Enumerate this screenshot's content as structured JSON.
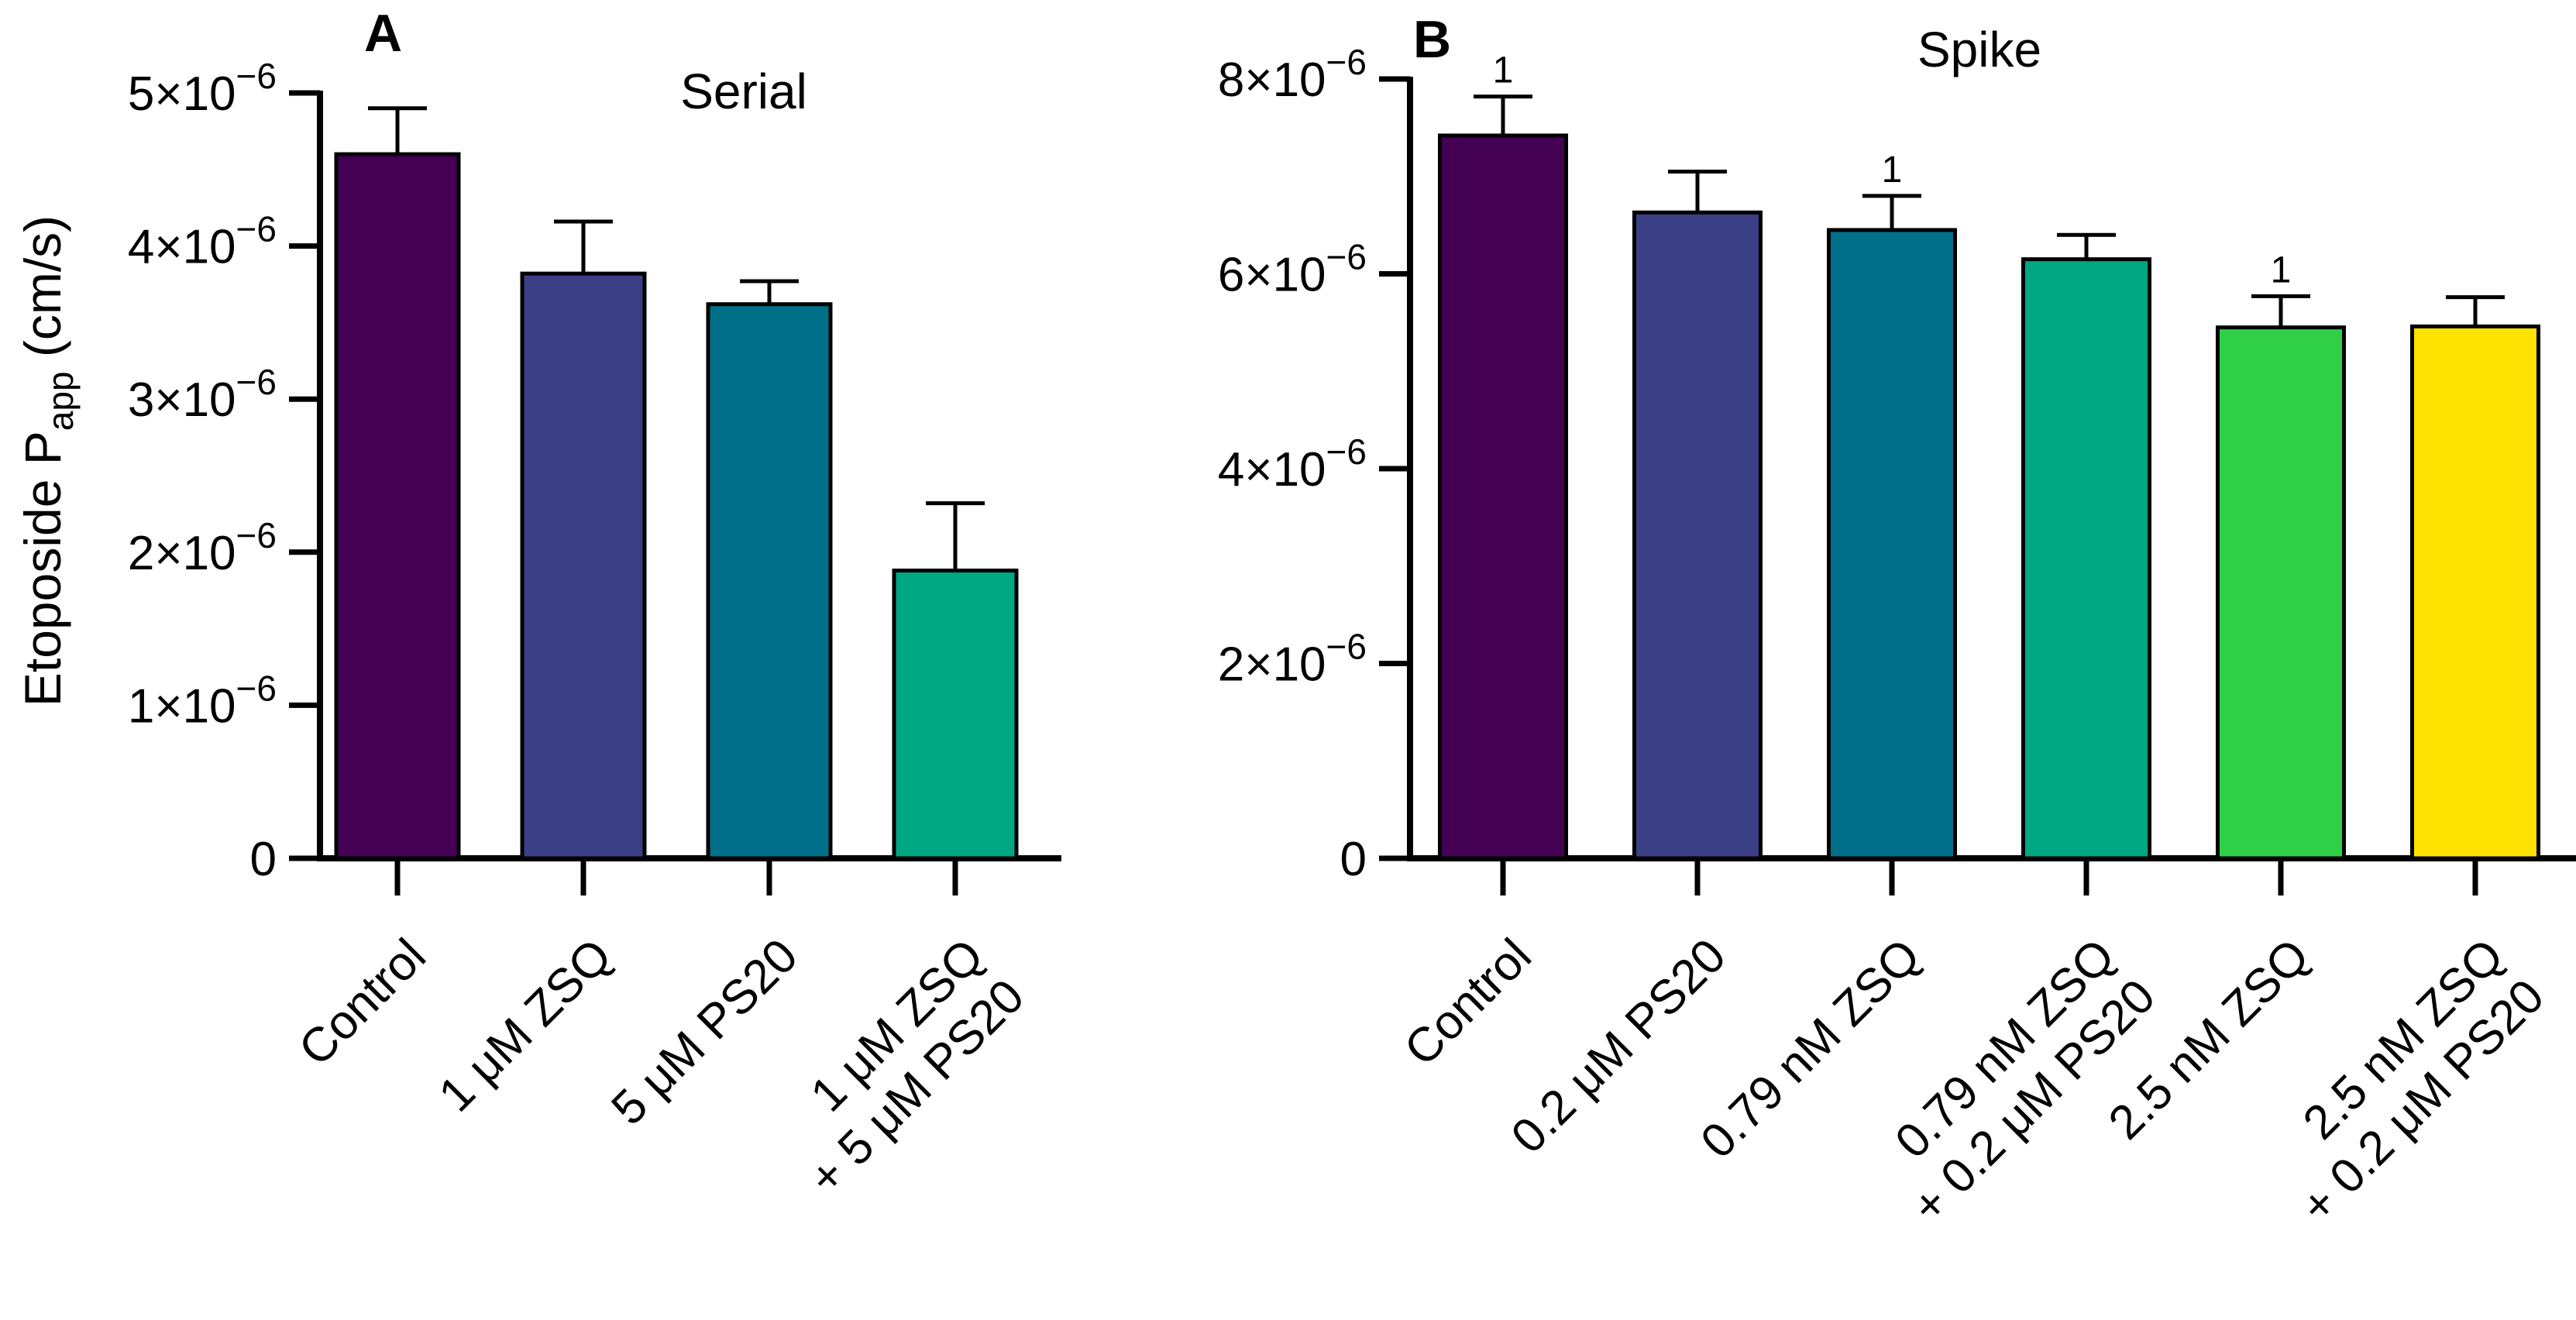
{
  "figure": {
    "ylabel_main": "Etoposide P",
    "ylabel_sub": "app",
    "ylabel_unit": " (cm/s)"
  },
  "chart_data": [
    {
      "panel": "A",
      "type": "bar",
      "title": "Serial",
      "xlabel": "",
      "ylabel": "Etoposide Papp (cm/s)",
      "ylim": [
        0,
        5e-06
      ],
      "yticks": [
        0,
        1e-06,
        2e-06,
        3e-06,
        4e-06,
        5e-06
      ],
      "ytick_labels": [
        {
          "base": "0",
          "exp": ""
        },
        {
          "base": "1×10",
          "exp": "−6"
        },
        {
          "base": "2×10",
          "exp": "−6"
        },
        {
          "base": "3×10",
          "exp": "−6"
        },
        {
          "base": "4×10",
          "exp": "−6"
        },
        {
          "base": "5×10",
          "exp": "−6"
        }
      ],
      "categories": [
        [
          "Control"
        ],
        [
          "1 μM ZSQ"
        ],
        [
          "5 μM PS20"
        ],
        [
          "1 μM ZSQ",
          "+ 5 μM PS20"
        ]
      ],
      "values": [
        4.6e-06,
        3.82e-06,
        3.62e-06,
        1.88e-06
      ],
      "errors": [
        3e-07,
        3.4e-07,
        1.5e-07,
        4.4e-07
      ],
      "annotations": [
        "",
        "",
        "",
        ""
      ],
      "colors": [
        "#440154",
        "#3b3f86",
        "#00708a",
        "#00a783"
      ]
    },
    {
      "panel": "B",
      "type": "bar",
      "title": "Spike",
      "xlabel": "",
      "ylabel": "",
      "ylim": [
        0,
        8e-06
      ],
      "yticks": [
        0,
        2e-06,
        4e-06,
        6e-06,
        8e-06
      ],
      "ytick_labels": [
        {
          "base": "0",
          "exp": ""
        },
        {
          "base": "2×10",
          "exp": "−6"
        },
        {
          "base": "4×10",
          "exp": "−6"
        },
        {
          "base": "6×10",
          "exp": "−6"
        },
        {
          "base": "8×10",
          "exp": "−6"
        }
      ],
      "categories": [
        [
          "Control"
        ],
        [
          "0.2 μM PS20"
        ],
        [
          "0.79 nM ZSQ"
        ],
        [
          "0.79 nM ZSQ",
          "+ 0.2 μM PS20"
        ],
        [
          "2.5 nM ZSQ"
        ],
        [
          "2.5 nM ZSQ",
          "+ 0.2 μM PS20"
        ]
      ],
      "values": [
        7.42e-06,
        6.63e-06,
        6.45e-06,
        6.15e-06,
        5.45e-06,
        5.46e-06
      ],
      "errors": [
        4e-07,
        4.2e-07,
        3.5e-07,
        2.5e-07,
        3.2e-07,
        3e-07
      ],
      "annotations": [
        "1",
        "",
        "1",
        "",
        "1",
        ""
      ],
      "colors": [
        "#440154",
        "#3b3f86",
        "#00708a",
        "#00a783",
        "#2fcf48",
        "#fde100"
      ]
    }
  ]
}
